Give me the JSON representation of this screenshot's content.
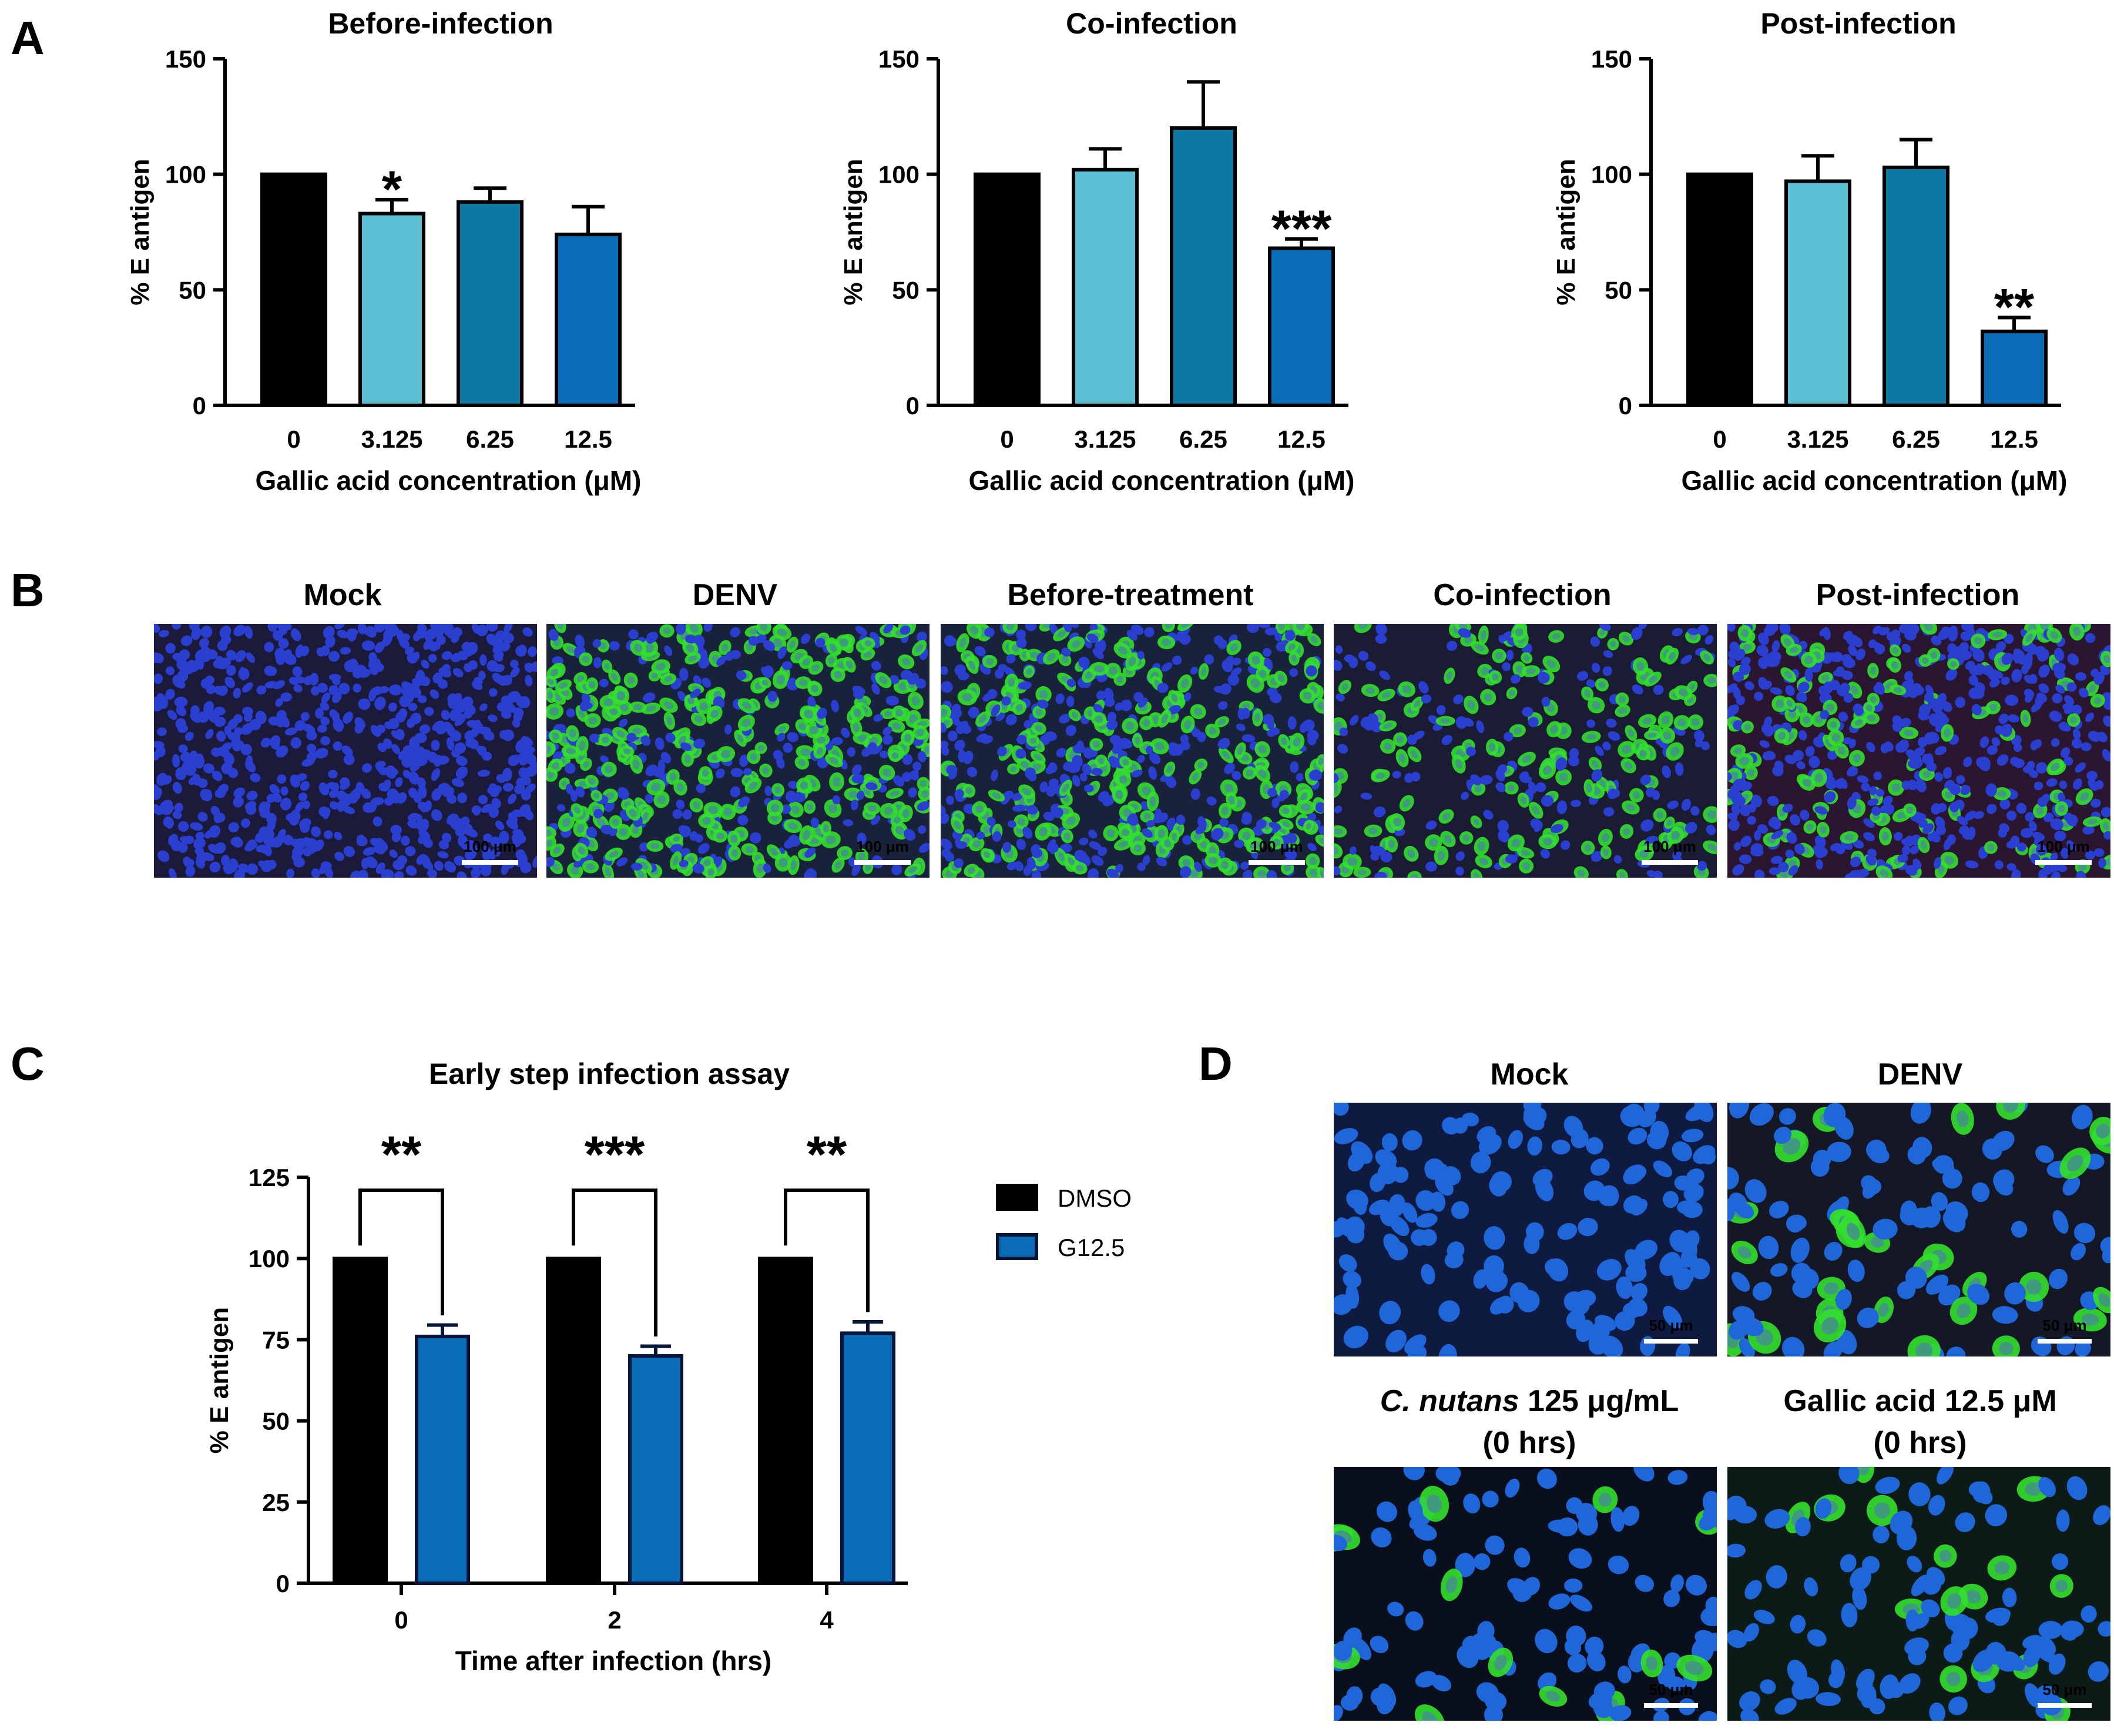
{
  "colors": {
    "black": "#000000",
    "light_cyan": "#5bbfd3",
    "teal": "#0b79a3",
    "blue": "#0a6db7",
    "nuclei_blue": "#2a3fd0",
    "fitc_green": "#33e02c"
  },
  "panel_a": {
    "letter": "A",
    "xlabel": "Gallic acid concentration (μM)",
    "ylabel": "% E antigen",
    "yticks": [
      "0",
      "50",
      "100",
      "150"
    ]
  },
  "panel_b": {
    "letter": "B",
    "scale_bar": "100 μm",
    "images": [
      "Mock",
      "DENV",
      "Before-treatment",
      "Co-infection",
      "Post-infection"
    ]
  },
  "panel_c": {
    "letter": "C",
    "yticks": [
      "0",
      "25",
      "50",
      "75",
      "100",
      "125"
    ],
    "legend": [
      "DMSO",
      "G12.5"
    ]
  },
  "panel_d": {
    "letter": "D",
    "scale_bar": "50 μm",
    "images": [
      {
        "title_lines": [
          "Mock"
        ]
      },
      {
        "title_lines": [
          "DENV"
        ]
      },
      {
        "title_italic": "C. nutans",
        "title_rest": " 125 μg/mL",
        "title_line2": "(0 hrs)"
      },
      {
        "title_lines": [
          "Gallic acid 12.5 μM",
          "(0 hrs)"
        ]
      }
    ]
  },
  "chart_data": [
    {
      "type": "bar",
      "title": "Before-infection",
      "xlabel": "Gallic acid concentration (μM)",
      "ylabel": "% E antigen",
      "ylim": [
        0,
        150
      ],
      "categories": [
        "0",
        "3.125",
        "6.25",
        "12.5"
      ],
      "values": [
        100,
        83,
        88,
        74
      ],
      "errors": [
        0,
        6,
        6,
        12
      ],
      "significance": [
        "",
        "*",
        "",
        ""
      ],
      "colors": [
        "#000000",
        "#5bbfd3",
        "#0b79a3",
        "#0a6db7"
      ]
    },
    {
      "type": "bar",
      "title": "Co-infection",
      "xlabel": "Gallic acid concentration (μM)",
      "ylabel": "% E antigen",
      "ylim": [
        0,
        150
      ],
      "categories": [
        "0",
        "3.125",
        "6.25",
        "12.5"
      ],
      "values": [
        100,
        102,
        120,
        68
      ],
      "errors": [
        0,
        9,
        20,
        4
      ],
      "significance": [
        "",
        "",
        "",
        "***"
      ],
      "colors": [
        "#000000",
        "#5bbfd3",
        "#0b79a3",
        "#0a6db7"
      ]
    },
    {
      "type": "bar",
      "title": "Post-infection",
      "xlabel": "Gallic acid concentration (μM)",
      "ylabel": "% E antigen",
      "ylim": [
        0,
        150
      ],
      "categories": [
        "0",
        "3.125",
        "6.25",
        "12.5"
      ],
      "values": [
        100,
        97,
        103,
        32
      ],
      "errors": [
        0,
        11,
        12,
        6
      ],
      "significance": [
        "",
        "",
        "",
        "**"
      ],
      "colors": [
        "#000000",
        "#5bbfd3",
        "#0b79a3",
        "#0a6db7"
      ]
    },
    {
      "type": "bar",
      "title": "Early step infection assay",
      "xlabel": "Time after infection (hrs)",
      "ylabel": "% E antigen",
      "ylim": [
        0,
        125
      ],
      "categories": [
        "0",
        "2",
        "4"
      ],
      "series": [
        {
          "name": "DMSO",
          "values": [
            100,
            100,
            100
          ],
          "errors": [
            0,
            0,
            0
          ],
          "color": "#000000"
        },
        {
          "name": "G12.5",
          "values": [
            76,
            70,
            77
          ],
          "errors": [
            3.5,
            3,
            3.5
          ],
          "color": "#0a6db7"
        }
      ],
      "significance": [
        "**",
        "***",
        "**"
      ],
      "legend_position": "right"
    }
  ]
}
